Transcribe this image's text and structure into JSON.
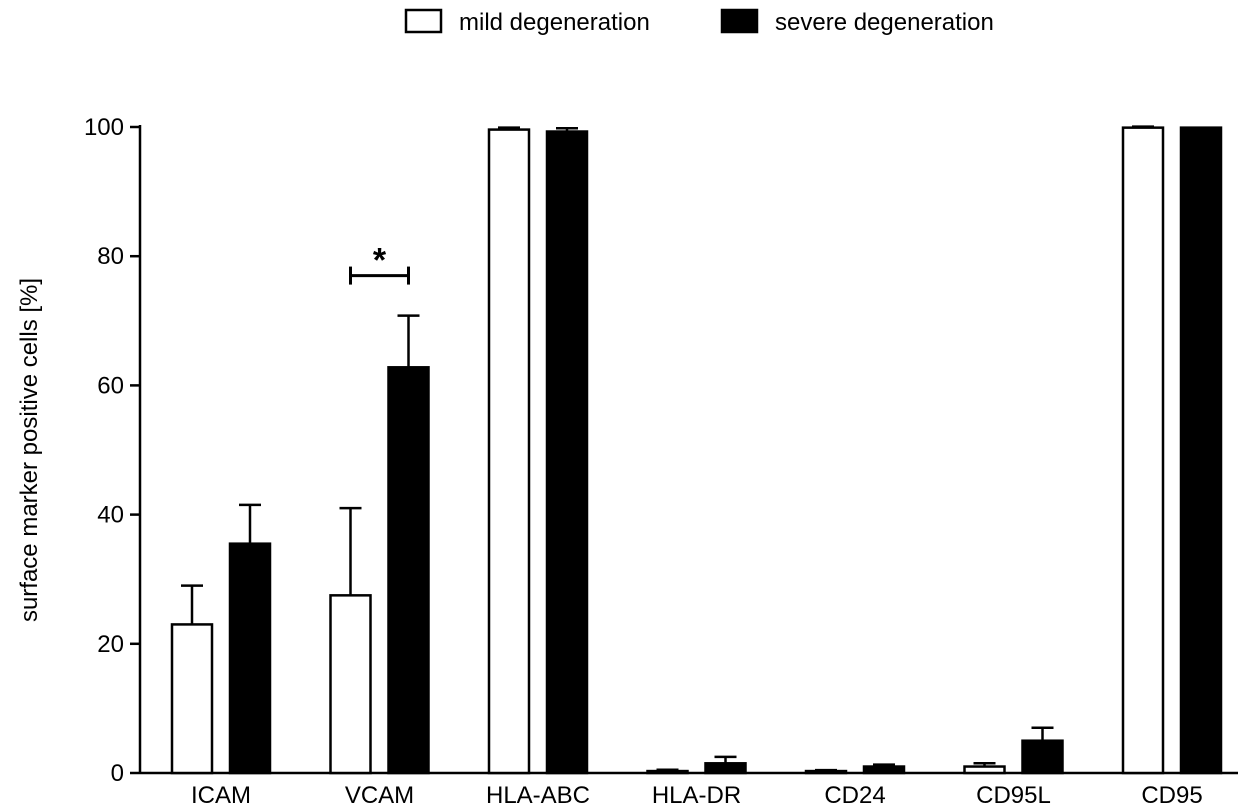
{
  "chart_data": {
    "type": "bar",
    "title": "",
    "xlabel": "",
    "ylabel": "surface marker positive cells [%]",
    "ylim": [
      0,
      100
    ],
    "yticks": [
      0,
      20,
      40,
      60,
      80,
      100
    ],
    "grid": false,
    "legend_position": "top-center",
    "categories": [
      "ICAM",
      "VCAM",
      "HLA-ABC",
      "HLA-DR",
      "CD24",
      "CD95L",
      "CD95"
    ],
    "series": [
      {
        "name": "mild degeneration",
        "fill": "#ffffff",
        "values": [
          23.0,
          27.5,
          99.6,
          0.3,
          0.3,
          1.0,
          99.9
        ],
        "errors": [
          6.0,
          13.5,
          0.3,
          0.2,
          0.15,
          0.5,
          0.15
        ]
      },
      {
        "name": "severe degeneration",
        "fill": "#000000",
        "values": [
          35.5,
          62.8,
          99.3,
          1.5,
          1.0,
          5.0,
          99.9
        ],
        "errors": [
          6.0,
          8.0,
          0.5,
          1.0,
          0.3,
          2.0,
          0.0
        ]
      }
    ],
    "annotations": [
      {
        "category": "VCAM",
        "text": "*",
        "bracket_y": 77
      }
    ]
  }
}
